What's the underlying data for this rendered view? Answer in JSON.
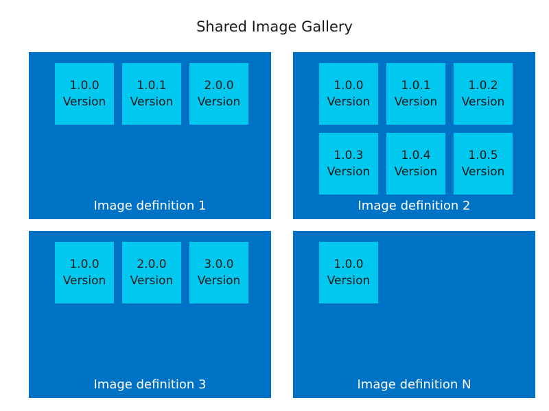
{
  "title": "Shared Image Gallery",
  "definitions": [
    {
      "label": "Image definition 1",
      "versions": [
        {
          "number": "1.0.0",
          "label": "Version"
        },
        {
          "number": "1.0.1",
          "label": "Version"
        },
        {
          "number": "2.0.0",
          "label": "Version"
        }
      ]
    },
    {
      "label": "Image definition 2",
      "versions": [
        {
          "number": "1.0.0",
          "label": "Version"
        },
        {
          "number": "1.0.1",
          "label": "Version"
        },
        {
          "number": "1.0.2",
          "label": "Version"
        },
        {
          "number": "1.0.3",
          "label": "Version"
        },
        {
          "number": "1.0.4",
          "label": "Version"
        },
        {
          "number": "1.0.5",
          "label": "Version"
        }
      ]
    },
    {
      "label": "Image definition 3",
      "versions": [
        {
          "number": "1.0.0",
          "label": "Version"
        },
        {
          "number": "2.0.0",
          "label": "Version"
        },
        {
          "number": "3.0.0",
          "label": "Version"
        }
      ]
    },
    {
      "label": "Image definition N",
      "versions": [
        {
          "number": "1.0.0",
          "label": "Version"
        }
      ]
    }
  ],
  "colors": {
    "definition_bg": "#0072c6",
    "version_bg": "#00c8ee",
    "definition_text": "#ffffff",
    "version_text": "#1a1a1a"
  }
}
